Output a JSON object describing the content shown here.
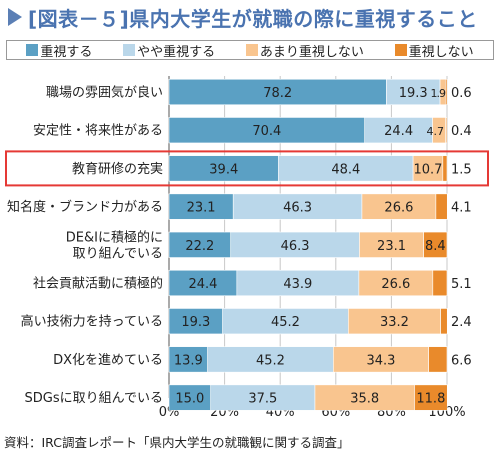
{
  "header": {
    "title": "[図表－５]県内大学生が就職の際に重視すること"
  },
  "source": "資料：IRC調査レポート「県内大学生の就職観に関する調査」",
  "colors": {
    "s1": "#5ba0c4",
    "s2": "#bad7ea",
    "s3": "#f9c58f",
    "s4": "#e98a2b",
    "highlight": "#e53935",
    "grid": "#c8c8c8"
  },
  "chart_data": {
    "type": "bar",
    "orientation": "horizontal",
    "stacked": true,
    "title": "[図表－５]県内大学生が就職の際に重視すること",
    "categories": [
      "職場の雰囲気が良い",
      "安定性・将来性がある",
      "教育研修の充実",
      "知名度・ブランド力がある",
      "DE&Iに積極的に取り組んでいる",
      "社会貢献活動に積極的",
      "高い技術力を持っている",
      "DX化を進めている",
      "SDGsに取り組んでいる"
    ],
    "category_lines": [
      [
        "職場の雰囲気が良い"
      ],
      [
        "安定性・将来性がある"
      ],
      [
        "教育研修の充実"
      ],
      [
        "知名度・ブランド力がある"
      ],
      [
        "DE&Iに積極的に",
        "取り組んでいる"
      ],
      [
        "社会貢献活動に積極的"
      ],
      [
        "高い技術力を持っている"
      ],
      [
        "DX化を進めている"
      ],
      [
        "SDGsに取り組んでいる"
      ]
    ],
    "series": [
      {
        "name": "重視する",
        "values": [
          78.2,
          70.4,
          39.4,
          23.1,
          22.2,
          24.4,
          19.3,
          13.9,
          15.0
        ],
        "labels": [
          "78.2",
          "70.4",
          "39.4",
          "23.1",
          "22.2",
          "24.4",
          "19.3",
          "13.9",
          "15.0"
        ]
      },
      {
        "name": "やや重視する",
        "values": [
          19.3,
          24.4,
          48.4,
          46.3,
          46.3,
          43.9,
          45.2,
          45.2,
          37.5
        ],
        "labels": [
          "19.3",
          "24.4",
          "48.4",
          "46.3",
          "46.3",
          "43.9",
          "45.2",
          "45.2",
          "37.5"
        ]
      },
      {
        "name": "あまり重視しない",
        "values": [
          1.9,
          4.7,
          10.7,
          26.6,
          23.1,
          26.6,
          33.2,
          34.3,
          35.8
        ],
        "labels": [
          "1.9",
          "4.7",
          "10.7",
          "26.6",
          "23.1",
          "26.6",
          "33.2",
          "34.3",
          "35.8"
        ]
      },
      {
        "name": "重視しない",
        "values": [
          0.6,
          0.4,
          1.5,
          4.1,
          8.4,
          5.1,
          2.4,
          6.6,
          11.8
        ],
        "labels": [
          "0.6",
          "0.4",
          "1.5",
          "4.1",
          "8.4",
          "5.1",
          "2.4",
          "6.6",
          "11.8"
        ]
      }
    ],
    "highlighted_category": "教育研修の充実",
    "xlim": [
      0,
      100
    ],
    "xticks": [
      "0%",
      "20%",
      "40%",
      "60%",
      "80%",
      "100%"
    ],
    "grid": true,
    "legend_position": "top"
  }
}
